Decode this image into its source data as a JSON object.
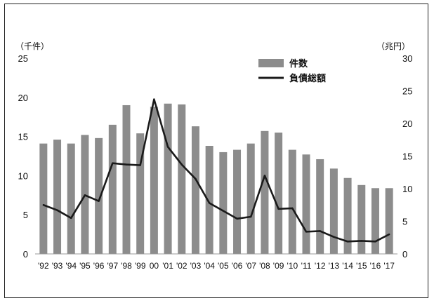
{
  "chart_data": {
    "type": "bar+line",
    "categories": [
      "'92",
      "'93",
      "'94",
      "'95",
      "'96",
      "'97",
      "'98",
      "'99",
      "00",
      "'01",
      "'02",
      "'03",
      "'04",
      "'05",
      "'06",
      "'07",
      "'08",
      "'09",
      "'10",
      "'11",
      "'12",
      "'13",
      "'14",
      "'15",
      "'16",
      "'17"
    ],
    "series": [
      {
        "name": "件数",
        "type": "bar",
        "axis": "left",
        "values": [
          14.1,
          14.6,
          14.1,
          15.2,
          14.8,
          16.5,
          19.0,
          15.4,
          18.8,
          19.2,
          19.1,
          16.3,
          13.8,
          13.0,
          13.3,
          14.1,
          15.7,
          15.5,
          13.3,
          12.7,
          12.1,
          10.9,
          9.7,
          8.8,
          8.4,
          8.4
        ],
        "color": "#8c8c8c"
      },
      {
        "name": "負債総額",
        "type": "line",
        "axis": "right",
        "values": [
          7.5,
          6.7,
          5.5,
          9.0,
          8.1,
          13.9,
          13.7,
          13.6,
          23.7,
          16.4,
          13.7,
          11.5,
          7.8,
          6.6,
          5.4,
          5.7,
          12.0,
          6.9,
          7.0,
          3.4,
          3.5,
          2.6,
          1.9,
          2.0,
          1.9,
          3.0
        ],
        "color": "#1a1a1a"
      }
    ],
    "left_axis": {
      "unit_label": "（千件）",
      "ylim": [
        0,
        25
      ],
      "ticks": [
        "0",
        "5",
        "10",
        "15",
        "20",
        "25"
      ]
    },
    "right_axis": {
      "unit_label": "（兆円）",
      "ylim": [
        0,
        30
      ],
      "ticks": [
        "0",
        "5",
        "10",
        "15",
        "20",
        "25",
        "30"
      ]
    },
    "grid": false,
    "legend_position": "top-right"
  }
}
